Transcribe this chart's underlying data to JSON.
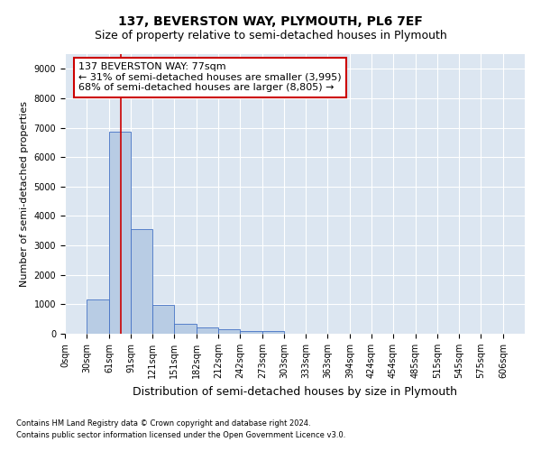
{
  "title": "137, BEVERSTON WAY, PLYMOUTH, PL6 7EF",
  "subtitle": "Size of property relative to semi-detached houses in Plymouth",
  "xlabel": "Distribution of semi-detached houses by size in Plymouth",
  "ylabel": "Number of semi-detached properties",
  "footnote1": "Contains HM Land Registry data © Crown copyright and database right 2024.",
  "footnote2": "Contains public sector information licensed under the Open Government Licence v3.0.",
  "property_label": "137 BEVERSTON WAY: 77sqm",
  "smaller_pct": 31,
  "smaller_count": 3995,
  "larger_pct": 68,
  "larger_count": 8805,
  "bar_left_edges": [
    0,
    30,
    61,
    91,
    121,
    151,
    182,
    212,
    242,
    273,
    303,
    333,
    363,
    394,
    424,
    454,
    485,
    515,
    545,
    575
  ],
  "bar_widths": [
    30,
    31,
    30,
    30,
    30,
    31,
    30,
    30,
    31,
    30,
    30,
    30,
    31,
    30,
    30,
    31,
    30,
    30,
    30,
    31
  ],
  "bar_heights": [
    0,
    1150,
    6875,
    3550,
    975,
    350,
    200,
    150,
    100,
    100,
    0,
    0,
    0,
    0,
    0,
    0,
    0,
    0,
    0,
    0
  ],
  "bar_color": "#b8cce4",
  "bar_edge_color": "#4472c4",
  "vline_x": 77,
  "vline_color": "#cc0000",
  "annotation_box_color": "#cc0000",
  "ylim": [
    0,
    9500
  ],
  "yticks": [
    0,
    1000,
    2000,
    3000,
    4000,
    5000,
    6000,
    7000,
    8000,
    9000
  ],
  "xtick_labels": [
    "0sqm",
    "30sqm",
    "61sqm",
    "91sqm",
    "121sqm",
    "151sqm",
    "182sqm",
    "212sqm",
    "242sqm",
    "273sqm",
    "303sqm",
    "333sqm",
    "363sqm",
    "394sqm",
    "424sqm",
    "454sqm",
    "485sqm",
    "515sqm",
    "545sqm",
    "575sqm",
    "606sqm"
  ],
  "xtick_positions": [
    0,
    30,
    61,
    91,
    121,
    151,
    182,
    212,
    242,
    273,
    303,
    333,
    363,
    394,
    424,
    454,
    485,
    515,
    545,
    575,
    606
  ],
  "xlim": [
    0,
    636
  ],
  "grid_color": "#ffffff",
  "bg_color": "#dce6f1",
  "title_fontsize": 10,
  "subtitle_fontsize": 9,
  "ylabel_fontsize": 8,
  "xlabel_fontsize": 9,
  "tick_fontsize": 7,
  "annotation_fontsize": 8,
  "footnote_fontsize": 6
}
